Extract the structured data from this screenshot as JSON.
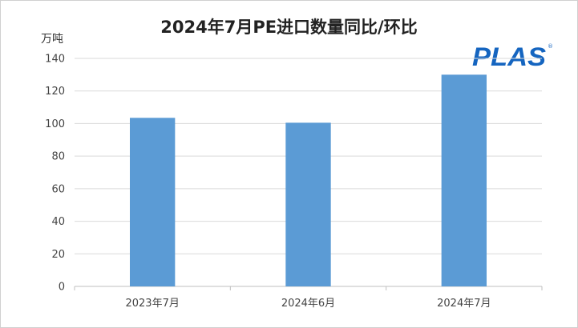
{
  "chart_data": {
    "type": "bar",
    "title": "2024年7月PE进口数量同比/环比",
    "ylabel": "万吨",
    "xlabel": "",
    "categories": [
      "2023年7月",
      "2024年6月",
      "2024年7月"
    ],
    "values": [
      103.5,
      100.5,
      130
    ],
    "ylim": [
      0,
      140
    ],
    "yticks": [
      0,
      20,
      40,
      60,
      80,
      100,
      120,
      140
    ],
    "grid": true,
    "bar_color": "#5b9bd5"
  },
  "logo": {
    "text": "PLAS",
    "mark": "®",
    "color": "#1565c0"
  }
}
